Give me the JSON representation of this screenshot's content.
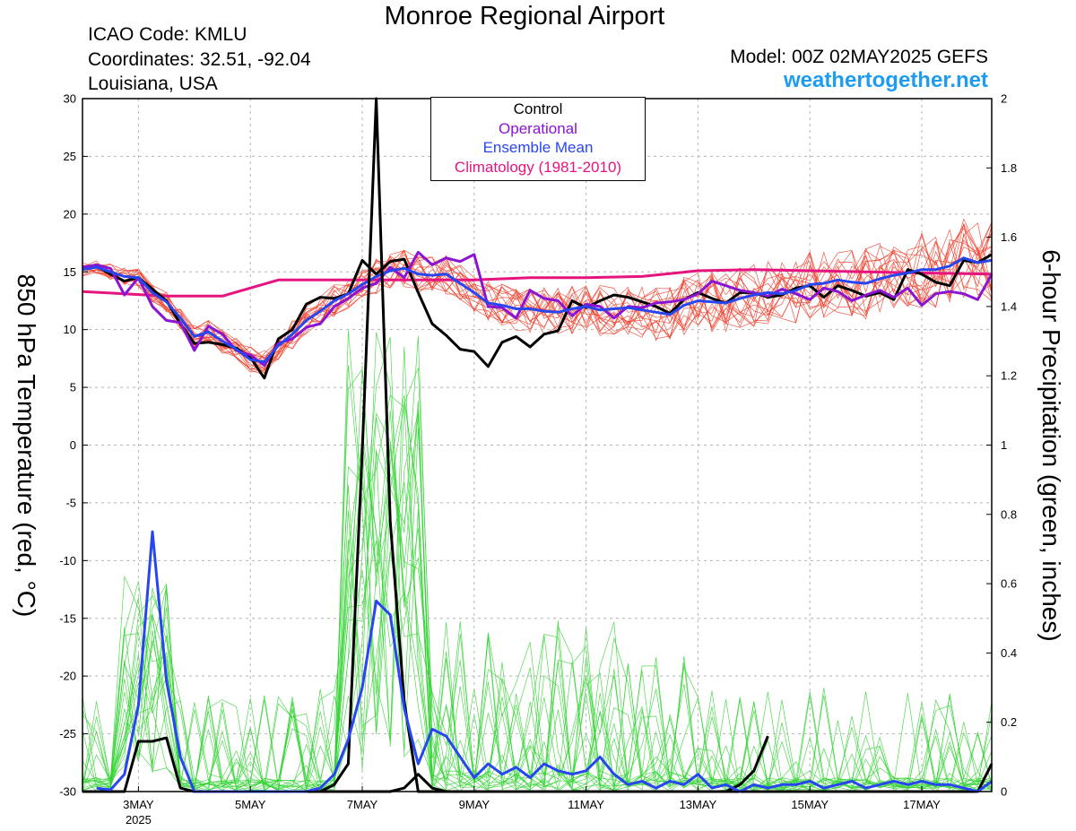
{
  "header": {
    "title": "Monroe Regional Airport",
    "icao": "ICAO Code: KMLU",
    "coordinates": "Coordinates: 32.51, -92.04",
    "location": "Louisiana, USA",
    "model": "Model: 00Z 02MAY2025 GEFS",
    "site": "weathertogether.net"
  },
  "chart_data": {
    "type": "line",
    "y_left_label": "850 hPa Temperature (red, °C)",
    "y_right_label": "6-hour Precipitation (green, inches)",
    "x_range_days": [
      0,
      16.25
    ],
    "y_left_range": [
      -30,
      30
    ],
    "y_right_range": [
      0,
      2
    ],
    "y_left_ticks": [
      -30,
      -25,
      -20,
      -15,
      -10,
      -5,
      0,
      5,
      10,
      15,
      20,
      25,
      30
    ],
    "y_right_ticks": [
      0,
      0.2,
      0.4,
      0.6,
      0.8,
      1,
      1.2,
      1.4,
      1.6,
      1.8,
      2
    ],
    "x_ticks": [
      {
        "day": 1.0,
        "label": "3MAY",
        "sub": "2025"
      },
      {
        "day": 3.0,
        "label": "5MAY",
        "sub": ""
      },
      {
        "day": 5.0,
        "label": "7MAY",
        "sub": ""
      },
      {
        "day": 7.0,
        "label": "9MAY",
        "sub": ""
      },
      {
        "day": 9.0,
        "label": "11MAY",
        "sub": ""
      },
      {
        "day": 11.0,
        "label": "13MAY",
        "sub": ""
      },
      {
        "day": 13.0,
        "label": "15MAY",
        "sub": ""
      },
      {
        "day": 15.0,
        "label": "17MAY",
        "sub": ""
      }
    ],
    "legend": [
      {
        "name": "Control",
        "color": "#000000"
      },
      {
        "name": "Operational",
        "color": "#8a14d2"
      },
      {
        "name": "Ensemble Mean",
        "color": "#2846f0"
      },
      {
        "name": "Climatology (1981-2010)",
        "color": "#e6147f"
      }
    ],
    "grid": true,
    "series": [
      {
        "axis": "left",
        "color": "#000000",
        "width": 3,
        "x": [
          0.0,
          0.25,
          0.5,
          0.75,
          1.0,
          1.25,
          1.5,
          1.75,
          2.0,
          2.25,
          2.5,
          2.75,
          3.0,
          3.25,
          3.5,
          3.75,
          4.0,
          4.25,
          4.5,
          4.75,
          5.0,
          5.25,
          5.5,
          5.75,
          6.0,
          6.25,
          6.5,
          6.75,
          7.0,
          7.25,
          7.5,
          7.75,
          8.0,
          8.25,
          8.5,
          8.75,
          9.0,
          9.25,
          9.5,
          9.75,
          10.0,
          10.25,
          10.5,
          10.75,
          11.0,
          11.25,
          11.5,
          11.75,
          12.0,
          12.25,
          12.5,
          12.75,
          13.0,
          13.25,
          13.5,
          13.75,
          14.0,
          14.25,
          14.5,
          14.75,
          15.0,
          15.25,
          15.5,
          15.75,
          16.0,
          16.25
        ],
        "values": [
          15.2,
          15.5,
          14.8,
          14.2,
          14.5,
          13.5,
          12.5,
          10.5,
          8.8,
          8.9,
          8.7,
          8.4,
          7.6,
          5.8,
          9.2,
          10.0,
          12.2,
          12.8,
          12.7,
          13.1,
          16.0,
          14.8,
          15.9,
          16.1,
          13.2,
          10.5,
          9.5,
          8.3,
          8.1,
          6.8,
          8.9,
          9.4,
          8.5,
          9.6,
          9.9,
          12.5,
          11.9,
          12.5,
          13.0,
          12.8,
          12.4,
          12.0,
          11.4,
          12.6,
          13.2,
          12.7,
          12.3,
          13.2,
          13.2,
          12.8,
          13.0,
          13.6,
          13.8,
          12.8,
          13.8,
          13.4,
          12.9,
          13.2,
          12.6,
          15.2,
          14.8,
          14.1,
          13.8,
          16.0,
          15.8,
          16.5
        ]
      },
      {
        "axis": "left",
        "color": "#8a14d2",
        "width": 3,
        "x": [
          0.0,
          0.25,
          0.5,
          0.75,
          1.0,
          1.25,
          1.5,
          1.75,
          2.0,
          2.25,
          2.5,
          2.75,
          3.0,
          3.25,
          3.5,
          3.75,
          4.0,
          4.25,
          4.5,
          4.75,
          5.0,
          5.25,
          5.5,
          5.75,
          6.0,
          6.25,
          6.5,
          6.75,
          7.0,
          7.25,
          7.5,
          7.75,
          8.0,
          8.25,
          8.5,
          8.75,
          9.0,
          9.25,
          9.5,
          9.75,
          10.0,
          10.25,
          10.5,
          10.75,
          11.0,
          11.25,
          11.5,
          11.75,
          12.0,
          12.25,
          12.5,
          12.75,
          13.0,
          13.25,
          13.5,
          13.75,
          14.0,
          14.25,
          14.5,
          14.75,
          15.0,
          15.25,
          15.5,
          15.75,
          16.0,
          16.25
        ],
        "values": [
          15.4,
          15.6,
          15.3,
          13.0,
          14.5,
          12.0,
          10.8,
          10.6,
          8.2,
          10.3,
          9.6,
          8.2,
          7.8,
          6.9,
          8.8,
          9.2,
          10.2,
          10.5,
          12.0,
          12.7,
          13.6,
          14.0,
          15.4,
          14.5,
          16.7,
          15.6,
          16.2,
          15.9,
          16.5,
          12.0,
          11.9,
          11.0,
          13.4,
          12.7,
          12.5,
          11.2,
          12.2,
          12.0,
          11.0,
          12.0,
          11.9,
          12.3,
          12.4,
          12.6,
          13.1,
          14.2,
          13.8,
          13.4,
          13.2,
          12.9,
          13.5,
          13.1,
          12.6,
          13.6,
          13.3,
          12.5,
          13.0,
          13.4,
          12.8,
          13.6,
          12.1,
          13.1,
          13.3,
          13.1,
          12.6,
          14.8
        ]
      },
      {
        "axis": "left",
        "color": "#2846f0",
        "width": 3,
        "x": [
          0.0,
          0.25,
          0.5,
          0.75,
          1.0,
          1.25,
          1.5,
          1.75,
          2.0,
          2.25,
          2.5,
          2.75,
          3.0,
          3.25,
          3.5,
          3.75,
          4.0,
          4.25,
          4.5,
          4.75,
          5.0,
          5.25,
          5.5,
          5.75,
          6.0,
          6.25,
          6.5,
          6.75,
          7.0,
          7.25,
          7.5,
          7.75,
          8.0,
          8.25,
          8.5,
          8.75,
          9.0,
          9.25,
          9.5,
          9.75,
          10.0,
          10.25,
          10.5,
          10.75,
          11.0,
          11.25,
          11.5,
          11.75,
          12.0,
          12.25,
          12.5,
          12.75,
          13.0,
          13.25,
          13.5,
          13.75,
          14.0,
          14.25,
          14.5,
          14.75,
          15.0,
          15.25,
          15.5,
          15.75,
          16.0,
          16.25
        ],
        "values": [
          15.2,
          15.4,
          15.0,
          14.6,
          14.5,
          13.2,
          12.4,
          11.0,
          9.4,
          9.8,
          9.0,
          8.3,
          7.4,
          7.2,
          8.6,
          9.6,
          10.8,
          11.6,
          12.5,
          13.1,
          13.9,
          14.6,
          15.1,
          15.3,
          14.8,
          14.7,
          14.8,
          14.0,
          13.2,
          12.3,
          12.1,
          11.8,
          11.8,
          11.6,
          11.5,
          11.8,
          12.0,
          11.7,
          11.8,
          11.9,
          11.7,
          11.5,
          11.3,
          12.1,
          12.5,
          12.4,
          12.3,
          12.7,
          13.0,
          13.2,
          13.1,
          13.4,
          13.9,
          14.0,
          14.3,
          14.1,
          14.0,
          14.4,
          14.7,
          14.9,
          15.2,
          15.2,
          15.5,
          16.2,
          15.8,
          16.0
        ]
      },
      {
        "axis": "left",
        "color": "#e6147f",
        "width": 3,
        "x": [
          0.0,
          1.5,
          2.0,
          2.5,
          3.0,
          3.5,
          4.0,
          5.0,
          6.0,
          7.0,
          8.0,
          9.0,
          10.0,
          11.0,
          12.0,
          13.0,
          14.0,
          15.0,
          16.25
        ],
        "values": [
          13.3,
          12.9,
          12.9,
          12.9,
          13.6,
          14.3,
          14.3,
          14.3,
          14.3,
          14.3,
          14.5,
          14.5,
          14.6,
          15.1,
          15.2,
          15.1,
          15.0,
          14.9,
          14.8
        ]
      },
      {
        "axis": "right",
        "color": "#000000",
        "width": 3,
        "x": [
          0.0,
          0.5,
          0.75,
          1.0,
          1.25,
          1.5,
          1.75,
          2.0,
          2.5,
          3.0,
          3.5,
          4.0,
          4.5,
          4.75,
          5.0,
          5.125,
          5.25,
          5.5,
          5.75,
          6.0,
          6.25,
          6.5,
          7.0,
          7.5,
          8.0,
          8.5,
          9.0,
          9.5,
          10.0,
          10.5,
          11.0,
          11.5,
          11.75,
          12.0,
          12.25,
          12.5,
          12.75,
          13.0,
          13.5,
          14.0,
          14.5,
          15.0,
          15.5,
          16.0,
          16.25
        ],
        "values": [
          0.0,
          0.0,
          0.0,
          0.145,
          0.145,
          0.155,
          0.01,
          0.0,
          0.0,
          0.0,
          0.0,
          0.0,
          0.0,
          0.0,
          0.0,
          0.0,
          0.0,
          0.0,
          0.01,
          0.05,
          0.01,
          0.0,
          0.0,
          0.0,
          0.0,
          0.0,
          0.0,
          0.0,
          0.0,
          0.0,
          0.0,
          0.0,
          0.0,
          0.0,
          0.0,
          0.0,
          0.0,
          0.0,
          0.0,
          0.0,
          0.0,
          0.0,
          0.0,
          0.0,
          0.08
        ]
      },
      {
        "axis": "right",
        "color": "#000000",
        "width": 3,
        "x": [
          3.75,
          4.0,
          4.25,
          4.5,
          4.75,
          5.0,
          5.25,
          5.5,
          5.75,
          6.0,
          10.75,
          11.0,
          11.25,
          11.5,
          11.75,
          12.0,
          12.25
        ],
        "values": [
          0.0,
          0.0,
          0.0,
          0.02,
          0.08,
          0.98,
          2.0,
          0.78,
          0.26,
          0.0,
          0.0,
          0.0,
          0.0,
          0.0,
          0.02,
          0.06,
          0.16
        ]
      },
      {
        "axis": "right",
        "color": "#2846f0",
        "width": 3,
        "x": [
          0.25,
          0.5,
          0.75,
          1.0,
          1.25,
          1.5,
          1.75,
          2.0,
          2.25,
          2.5,
          3.75,
          4.0,
          4.25,
          4.5,
          4.75,
          5.0,
          5.25,
          5.5,
          5.75,
          6.0,
          6.25,
          6.5,
          6.75,
          7.0,
          7.25,
          7.5,
          7.75,
          8.0,
          8.25,
          8.5,
          8.75,
          9.0,
          9.25,
          9.5,
          9.75,
          10.0,
          10.25,
          10.5,
          10.75,
          11.0,
          11.25,
          11.5,
          11.75,
          12.0,
          12.25,
          12.5,
          12.75,
          13.0,
          13.25,
          13.5,
          13.75,
          14.0,
          14.25,
          14.5,
          14.75,
          15.0,
          15.25,
          15.5,
          15.75,
          16.0,
          16.25
        ],
        "values": [
          0.01,
          0.005,
          0.05,
          0.25,
          0.75,
          0.32,
          0.1,
          0.0,
          0.0,
          0.0,
          0.0,
          0.0,
          0.01,
          0.05,
          0.15,
          0.3,
          0.55,
          0.51,
          0.24,
          0.08,
          0.18,
          0.16,
          0.1,
          0.04,
          0.08,
          0.05,
          0.07,
          0.04,
          0.08,
          0.06,
          0.05,
          0.06,
          0.1,
          0.05,
          0.02,
          0.03,
          0.01,
          0.03,
          0.02,
          0.05,
          0.01,
          0.02,
          0.0,
          0.02,
          0.01,
          0.02,
          0.02,
          0.03,
          0.01,
          0.02,
          0.03,
          0.01,
          0.02,
          0.03,
          0.02,
          0.03,
          0.02,
          0.02,
          0.01,
          0.0,
          0.03
        ]
      }
    ]
  }
}
